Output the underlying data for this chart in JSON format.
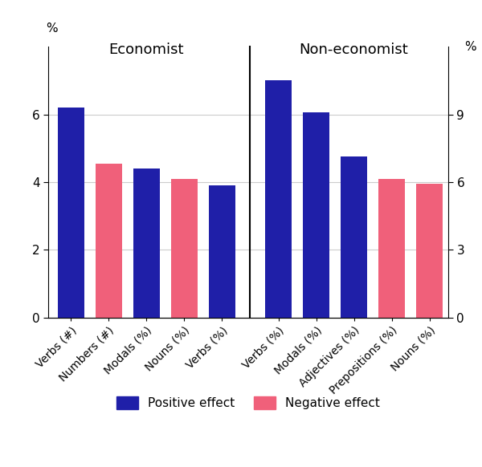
{
  "economist_labels": [
    "Verbs (#)",
    "Numbers (#)",
    "Modals (%)",
    "Nouns (%)",
    "Verbs (%)"
  ],
  "economist_values": [
    6.2,
    4.55,
    4.4,
    4.1,
    3.9
  ],
  "economist_colors": [
    "#1f1fa8",
    "#f0607a",
    "#1f1fa8",
    "#f0607a",
    "#1f1fa8"
  ],
  "noneconomist_labels": [
    "Verbs (%)",
    "Modals (%)",
    "Adjectives (%)",
    "Prepositions (%)",
    "Nouns (%)"
  ],
  "noneconomist_values": [
    7.0,
    6.05,
    4.75,
    4.1,
    3.95
  ],
  "noneconomist_colors": [
    "#1f1fa8",
    "#1f1fa8",
    "#1f1fa8",
    "#f0607a",
    "#f0607a"
  ],
  "positive_color": "#1f1fa8",
  "negative_color": "#f0607a",
  "left_title": "Economist",
  "right_title": "Non-economist",
  "ylabel_left": "%",
  "ylabel_right": "%",
  "ylim_left": [
    0,
    8.0
  ],
  "ylim_right": [
    0,
    12.0
  ],
  "yticks_left": [
    0,
    2,
    4,
    6
  ],
  "yticks_right": [
    0,
    3,
    6,
    9
  ],
  "legend_positive": "Positive effect",
  "legend_negative": "Negative effect",
  "bar_width": 0.7,
  "background_color": "#ffffff",
  "grid_color": "#cccccc",
  "divider_color": "#000000"
}
